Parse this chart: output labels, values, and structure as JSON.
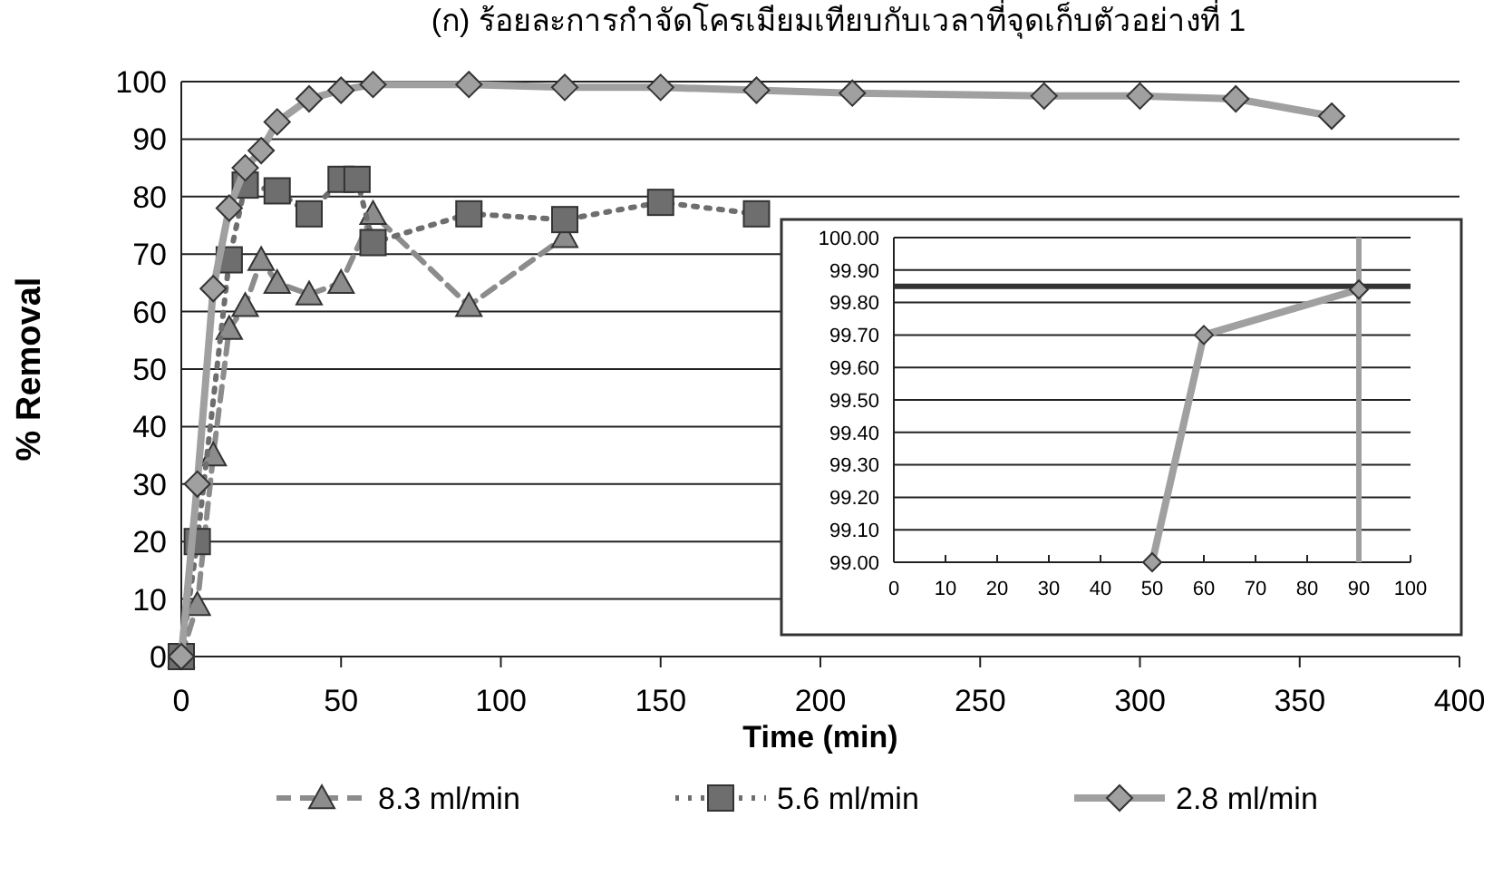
{
  "chart_data": [
    {
      "type": "line",
      "title": "(ก) ร้อยละการกำจัดโครเมียมเทียบกับเวลาที่จุดเก็บตัวอย่างที่ 1",
      "xlabel": "Time (min)",
      "ylabel": "% Removal",
      "xlim": [
        0,
        400
      ],
      "xticks": [
        0,
        50,
        100,
        150,
        200,
        250,
        300,
        350,
        400
      ],
      "ylim": [
        0,
        100
      ],
      "yticks": [
        0,
        10,
        20,
        30,
        40,
        50,
        60,
        70,
        80,
        90,
        100
      ],
      "grid": "y",
      "legend": "bottom",
      "series": [
        {
          "name": "8.3 ml/min",
          "color": "#8c8c8c",
          "marker": "triangle",
          "line_style": "dashed",
          "x": [
            0,
            5,
            10,
            15,
            20,
            25,
            30,
            40,
            50,
            60,
            90,
            120
          ],
          "values": [
            0,
            9,
            35,
            57,
            61,
            69,
            65,
            63,
            65,
            77,
            61,
            73
          ]
        },
        {
          "name": "5.6 ml/min",
          "color": "#6e6e6e",
          "marker": "square",
          "line_style": "dotted",
          "x": [
            0,
            5,
            15,
            20,
            30,
            40,
            50,
            55,
            60,
            90,
            120,
            150,
            180
          ],
          "values": [
            0,
            20,
            69,
            82,
            81,
            77,
            83,
            83,
            72,
            77,
            76,
            79,
            77
          ]
        },
        {
          "name": "2.8 ml/min",
          "color": "#a0a0a0",
          "marker": "diamond",
          "line_style": "solid",
          "x": [
            0,
            5,
            10,
            15,
            20,
            25,
            30,
            40,
            50,
            60,
            90,
            120,
            150,
            180,
            210,
            270,
            300,
            330,
            360
          ],
          "values": [
            0,
            30,
            64,
            78,
            85,
            88,
            93,
            97,
            98.5,
            99.5,
            99.5,
            99,
            99,
            98.5,
            98,
            97.5,
            97.5,
            97,
            94
          ]
        }
      ]
    },
    {
      "type": "line",
      "xlim": [
        0,
        100
      ],
      "xticks": [
        0,
        10,
        20,
        30,
        40,
        50,
        60,
        70,
        80,
        90,
        100
      ],
      "ylim": [
        99,
        100
      ],
      "yticks": [
        {
          "value": 99,
          "label": "99.00"
        },
        {
          "value": 99.1,
          "label": "99.10"
        },
        {
          "value": 99.2,
          "label": "99.20"
        },
        {
          "value": 99.3,
          "label": "99.30"
        },
        {
          "value": 99.4,
          "label": "99.40"
        },
        {
          "value": 99.5,
          "label": "99.50"
        },
        {
          "value": 99.6,
          "label": "99.60"
        },
        {
          "value": 99.7,
          "label": "99.70"
        },
        {
          "value": 99.8,
          "label": "99.80"
        },
        {
          "value": 99.9,
          "label": "99.90"
        },
        {
          "value": 100,
          "label": "100.00"
        }
      ],
      "grid": "y",
      "series": [
        {
          "color": "#a0a0a0",
          "marker": "diamond",
          "line_style": "solid",
          "x": [
            50,
            60,
            90
          ],
          "values": [
            99.0,
            99.7,
            99.84
          ]
        }
      ],
      "ref_lines": [
        {
          "axis": "y",
          "value": 99.85,
          "color": "#333333"
        },
        {
          "axis": "x",
          "value": 90,
          "color": "#a0a0a0"
        }
      ]
    }
  ]
}
